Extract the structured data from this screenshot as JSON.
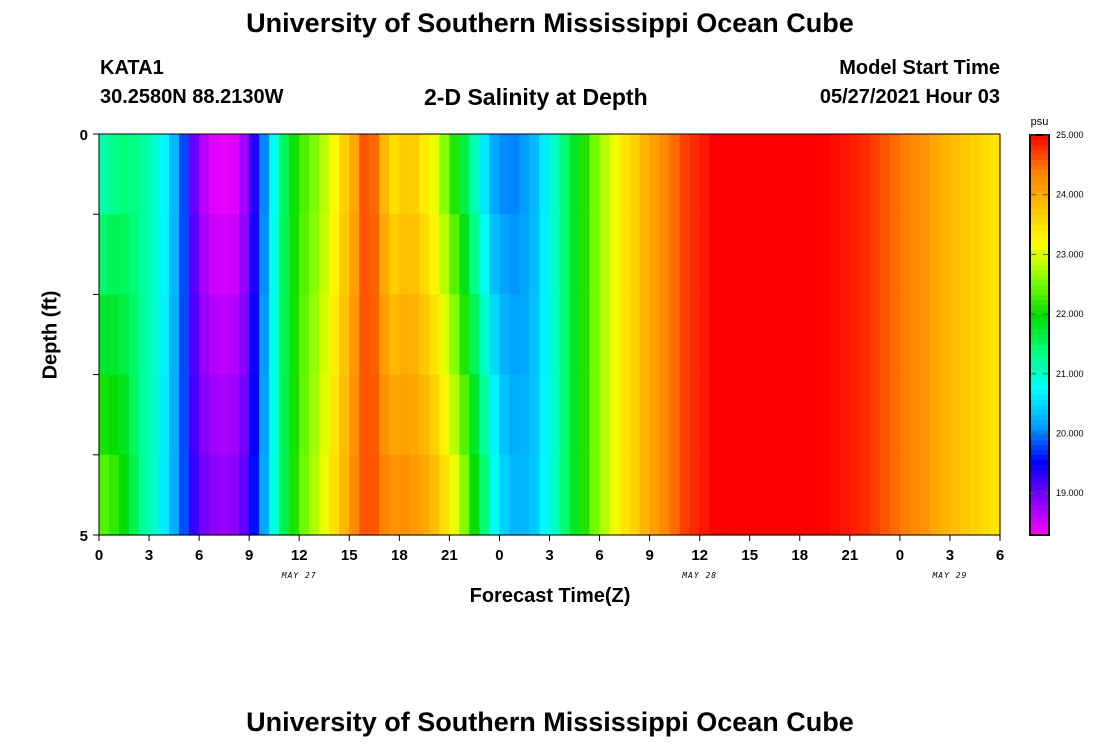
{
  "header": {
    "title": "University of Southern Mississippi Ocean Cube",
    "station": "KATA1",
    "coordinates": "30.2580N  88.2130W",
    "subtitle": "2-D Salinity at Depth",
    "model_start_label": "Model Start Time",
    "model_start_value": "05/27/2021 Hour 03"
  },
  "footer": {
    "title": "University of Southern Mississippi Ocean Cube"
  },
  "chart_data": {
    "type": "heatmap",
    "title": "2-D Salinity at Depth",
    "xlabel": "Forecast Time(Z)",
    "ylabel": "Depth (ft)",
    "x_tick_labels": [
      "0",
      "3",
      "6",
      "9",
      "12",
      "15",
      "18",
      "21",
      "0",
      "3",
      "6",
      "9",
      "12",
      "15",
      "18",
      "21",
      "0",
      "3",
      "6"
    ],
    "date_labels": [
      {
        "label": "MAY 27",
        "hour_index": 12
      },
      {
        "label": "MAY 28",
        "hour_index": 36
      },
      {
        "label": "MAY 29",
        "hour_index": 51
      }
    ],
    "x_range_hours": [
      0,
      54
    ],
    "y_tick_labels": [
      "0",
      "5"
    ],
    "y_range_ft": [
      0,
      5
    ],
    "colorbar": {
      "unit": "psu",
      "min": 18.3,
      "max": 25.0,
      "tick_values": [
        19.0,
        20.0,
        21.0,
        22.0,
        23.0,
        24.0,
        25.0
      ],
      "tick_labels": [
        "19.000",
        "20.000",
        "21.000",
        "22.000",
        "23.000",
        "24.000",
        "25.000"
      ],
      "colormap": [
        "#ff00ff",
        "#8000ff",
        "#0000ff",
        "#00a0ff",
        "#00ffff",
        "#00ff80",
        "#00dd00",
        "#80ff00",
        "#ffff00",
        "#ffc000",
        "#ff8000",
        "#ff0000"
      ]
    },
    "surface_salinity_psu": [
      21.0,
      21.2,
      21.3,
      21.3,
      21.2,
      21.0,
      20.7,
      20.3,
      19.8,
      19.0,
      18.6,
      18.4,
      18.35,
      18.4,
      18.7,
      19.3,
      20.0,
      20.8,
      21.5,
      22.0,
      22.3,
      22.5,
      22.8,
      23.2,
      23.6,
      24.0,
      24.6,
      24.5,
      23.8,
      23.4,
      23.6,
      23.6,
      23.3,
      23.0,
      22.5,
      22.0,
      21.5,
      21.0,
      20.5,
      20.1,
      20.0,
      20.0,
      20.1,
      20.3,
      20.6,
      21.0,
      21.4,
      21.8,
      22.1,
      22.5,
      22.8,
      23.1,
      23.4,
      23.6,
      23.9,
      24.1,
      24.3,
      24.5,
      24.7,
      24.8,
      24.9,
      25.0,
      25.0,
      25.0,
      25.0,
      25.0,
      25.0,
      25.0,
      25.0,
      25.0,
      25.0,
      25.0,
      25.0,
      24.95,
      24.9,
      24.85,
      24.8,
      24.7,
      24.6,
      24.5,
      24.4,
      24.3,
      24.2,
      24.0,
      23.9,
      23.8,
      23.7,
      23.6,
      23.5,
      23.4
    ],
    "bottom_salinity_psu": [
      22.5,
      22.3,
      22.0,
      21.6,
      21.2,
      21.0,
      20.6,
      20.2,
      19.8,
      19.3,
      19.0,
      18.9,
      18.85,
      18.9,
      19.1,
      19.6,
      20.2,
      20.9,
      21.6,
      22.1,
      22.5,
      22.8,
      23.1,
      23.5,
      23.9,
      24.3,
      24.6,
      24.6,
      24.4,
      24.3,
      24.3,
      24.2,
      24.1,
      23.9,
      23.6,
      23.2,
      22.7,
      22.1,
      21.5,
      20.9,
      20.5,
      20.3,
      20.3,
      20.4,
      20.7,
      21.0,
      21.4,
      21.8,
      22.1,
      22.5,
      22.8,
      23.1,
      23.4,
      23.6,
      23.9,
      24.1,
      24.3,
      24.5,
      24.7,
      24.8,
      24.9,
      25.0,
      25.0,
      25.0,
      25.0,
      25.0,
      25.0,
      25.0,
      25.0,
      25.0,
      25.0,
      25.0,
      25.0,
      24.95,
      24.9,
      24.85,
      24.8,
      24.7,
      24.6,
      24.5,
      24.4,
      24.3,
      24.2,
      24.0,
      23.9,
      23.8,
      23.7,
      23.6,
      23.5,
      23.4
    ]
  }
}
